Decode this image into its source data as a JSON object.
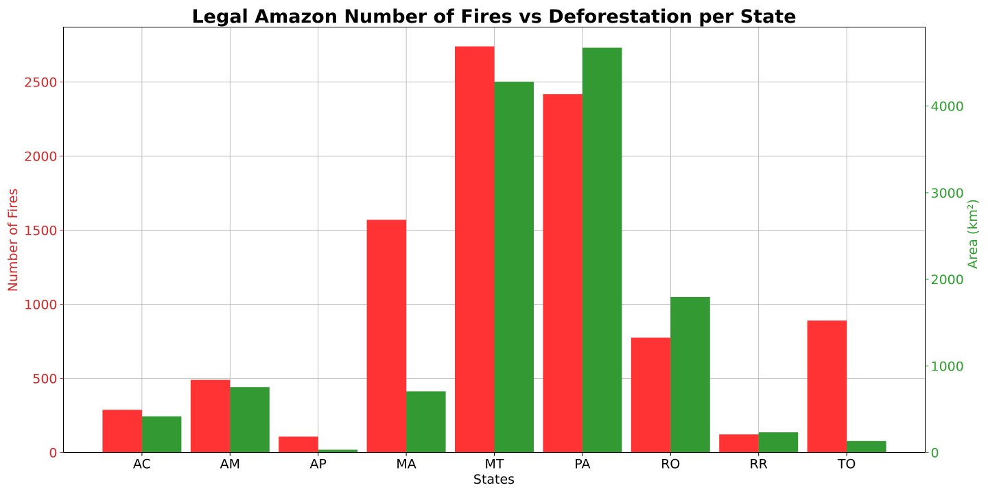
{
  "chart_data": {
    "type": "bar",
    "title": "Legal Amazon Number of Fires vs Deforestation per State",
    "xlabel": "States",
    "ylabel_left": "Number of Fires",
    "ylabel_right": "Area (km²)",
    "categories": [
      "AC",
      "AM",
      "AP",
      "MA",
      "MT",
      "PA",
      "RO",
      "RR",
      "TO"
    ],
    "series": [
      {
        "axis": "left",
        "color": "#ff3333",
        "values": [
          288,
          490,
          107,
          1570,
          2740,
          2418,
          775,
          122,
          890
        ]
      },
      {
        "axis": "right",
        "color": "#339933",
        "values": [
          417,
          755,
          32,
          706,
          4281,
          4674,
          1795,
          233,
          132
        ]
      }
    ],
    "ylim_left": [
      0,
      2870
    ],
    "ylim_right": [
      0,
      4912
    ],
    "yticks_left": [
      0,
      500,
      1000,
      1500,
      2000,
      2500
    ],
    "yticks_right": [
      0,
      1000,
      2000,
      3000,
      4000
    ],
    "left_axis_color": "#d62728",
    "right_axis_color": "#2ca02c",
    "grid": true
  }
}
